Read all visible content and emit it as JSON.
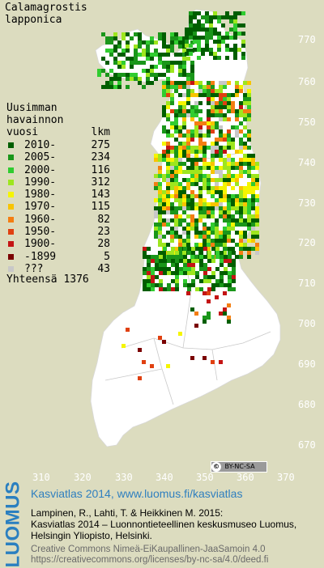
{
  "species": {
    "line1": "Calamagrostis",
    "line2": "lapponica"
  },
  "legend": {
    "title": [
      "Uusimman",
      "havainnon"
    ],
    "col_year": "vuosi",
    "col_count": "lkm",
    "items": [
      {
        "label": "2010-",
        "count": "275",
        "color": "#005e00"
      },
      {
        "label": "2005-",
        "count": "234",
        "color": "#1a961a"
      },
      {
        "label": "2000-",
        "count": "116",
        "color": "#30cc30"
      },
      {
        "label": "1990-",
        "count": "312",
        "color": "#9ee61e"
      },
      {
        "label": "1980-",
        "count": "143",
        "color": "#f5f500"
      },
      {
        "label": "1970-",
        "count": "115",
        "color": "#f8c400"
      },
      {
        "label": "1960-",
        "count": "82",
        "color": "#f47e12"
      },
      {
        "label": "1950-",
        "count": "23",
        "color": "#e04010"
      },
      {
        "label": "1900-",
        "count": "28",
        "color": "#c41414"
      },
      {
        "label": "-1899",
        "count": "5",
        "color": "#7a0000"
      },
      {
        "label": "???",
        "count": "43",
        "color": "#c8c8c8"
      }
    ],
    "total_label": "Yhteensä",
    "total": "1376"
  },
  "axes": {
    "y_ticks": [
      "770",
      "760",
      "750",
      "740",
      "730",
      "720",
      "710",
      "700",
      "690",
      "680",
      "670"
    ],
    "x_ticks": [
      "310",
      "320",
      "330",
      "340",
      "350",
      "360",
      "370"
    ]
  },
  "license_badge": "BY-NC-SA",
  "footer": {
    "logo": "LUOMUS",
    "site": "Kasviatlas 2014, www.luomus.fi/kasviatlas",
    "ref1": "Lampinen, R., Lahti, T. & Heikkinen M. 2015:",
    "ref2": "Kasviatlas 2014 – Luonnontieteellinen keskusmuseo Luomus,",
    "ref3": "Helsingin Yliopisto, Helsinki.",
    "lic1": "Creative Commons Nimeä-EiKaupallinen-JaaSamoin 4.0",
    "lic2": "https://creativecommons.org/licenses/by-nc-sa/4.0/deed.fi"
  },
  "colors": {
    "background": "#dcdcbf",
    "land": "#ffffff",
    "borders": "#c8c8c8"
  }
}
